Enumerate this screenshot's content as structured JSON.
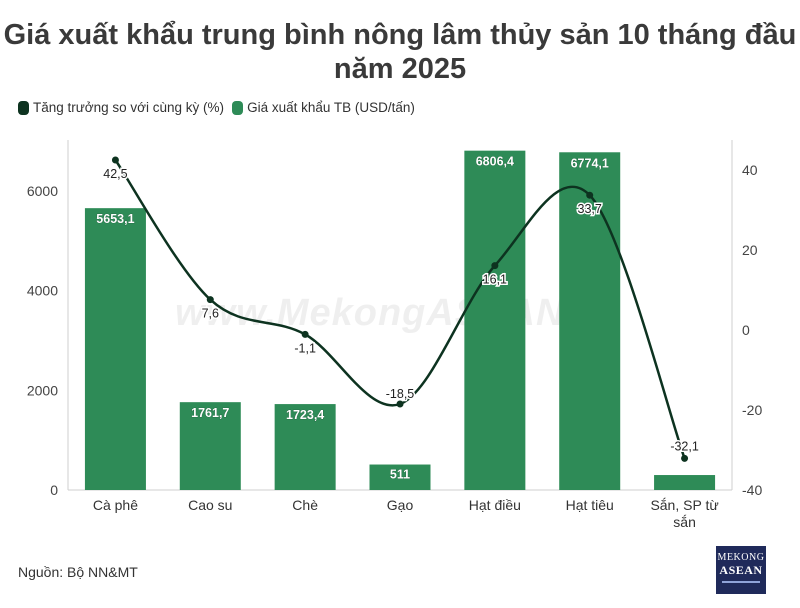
{
  "title": "Giá xuất khẩu trung bình nông lâm thủy sản 10 tháng đầu năm 2025",
  "source": "Nguồn: Bộ NN&MT",
  "watermark": "www.MekongASEAN.vn",
  "logo": {
    "line1": "MEKONG",
    "line2": "ASEAN"
  },
  "legend": [
    {
      "label": "Tăng trưởng so với cùng kỳ (%)",
      "color": "#0d3320"
    },
    {
      "label": "Giá xuất khẩu TB (USD/tấn)",
      "color": "#2e8b57"
    }
  ],
  "chart_data": {
    "type": "bar",
    "categories": [
      "Cà phê",
      "Cao su",
      "Chè",
      "Gạo",
      "Hạt điều",
      "Hạt tiêu",
      "Sắn, SP từ sắn"
    ],
    "series": [
      {
        "name": "Giá xuất khẩu TB (USD/tấn)",
        "type": "bar",
        "axis": "left",
        "color": "#2e8b57",
        "values": [
          5653.1,
          1761.7,
          1723.4,
          511,
          6806.4,
          6774.1,
          300
        ],
        "labels": [
          "5653,1",
          "1761,7",
          "1723,4",
          "511",
          "6806,4",
          "6774,1",
          ""
        ]
      },
      {
        "name": "Tăng trưởng so với cùng kỳ (%)",
        "type": "line",
        "axis": "right",
        "color": "#0d3320",
        "values": [
          42.5,
          7.6,
          -1.1,
          -18.5,
          16.1,
          33.7,
          -32.1
        ],
        "labels": [
          "42,5",
          "7,6",
          "-1,1",
          "-18,5",
          "16,1",
          "33,7",
          "-32,1"
        ]
      }
    ],
    "y_left": {
      "min": 0,
      "max": 6900,
      "ticks": [
        0,
        2000,
        4000,
        6000
      ]
    },
    "y_right": {
      "min": -40,
      "max": 46,
      "ticks": [
        -40,
        -20,
        0,
        20,
        40
      ]
    },
    "legend_position": "top-left",
    "grid": false
  }
}
